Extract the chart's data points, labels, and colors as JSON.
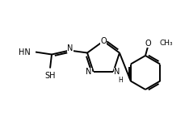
{
  "bg_color": "#ffffff",
  "line_color": "#000000",
  "lw": 1.4,
  "fig_w": 2.34,
  "fig_h": 1.55,
  "dpi": 100,
  "xlim": [
    0,
    234
  ],
  "ylim": [
    0,
    155
  ]
}
